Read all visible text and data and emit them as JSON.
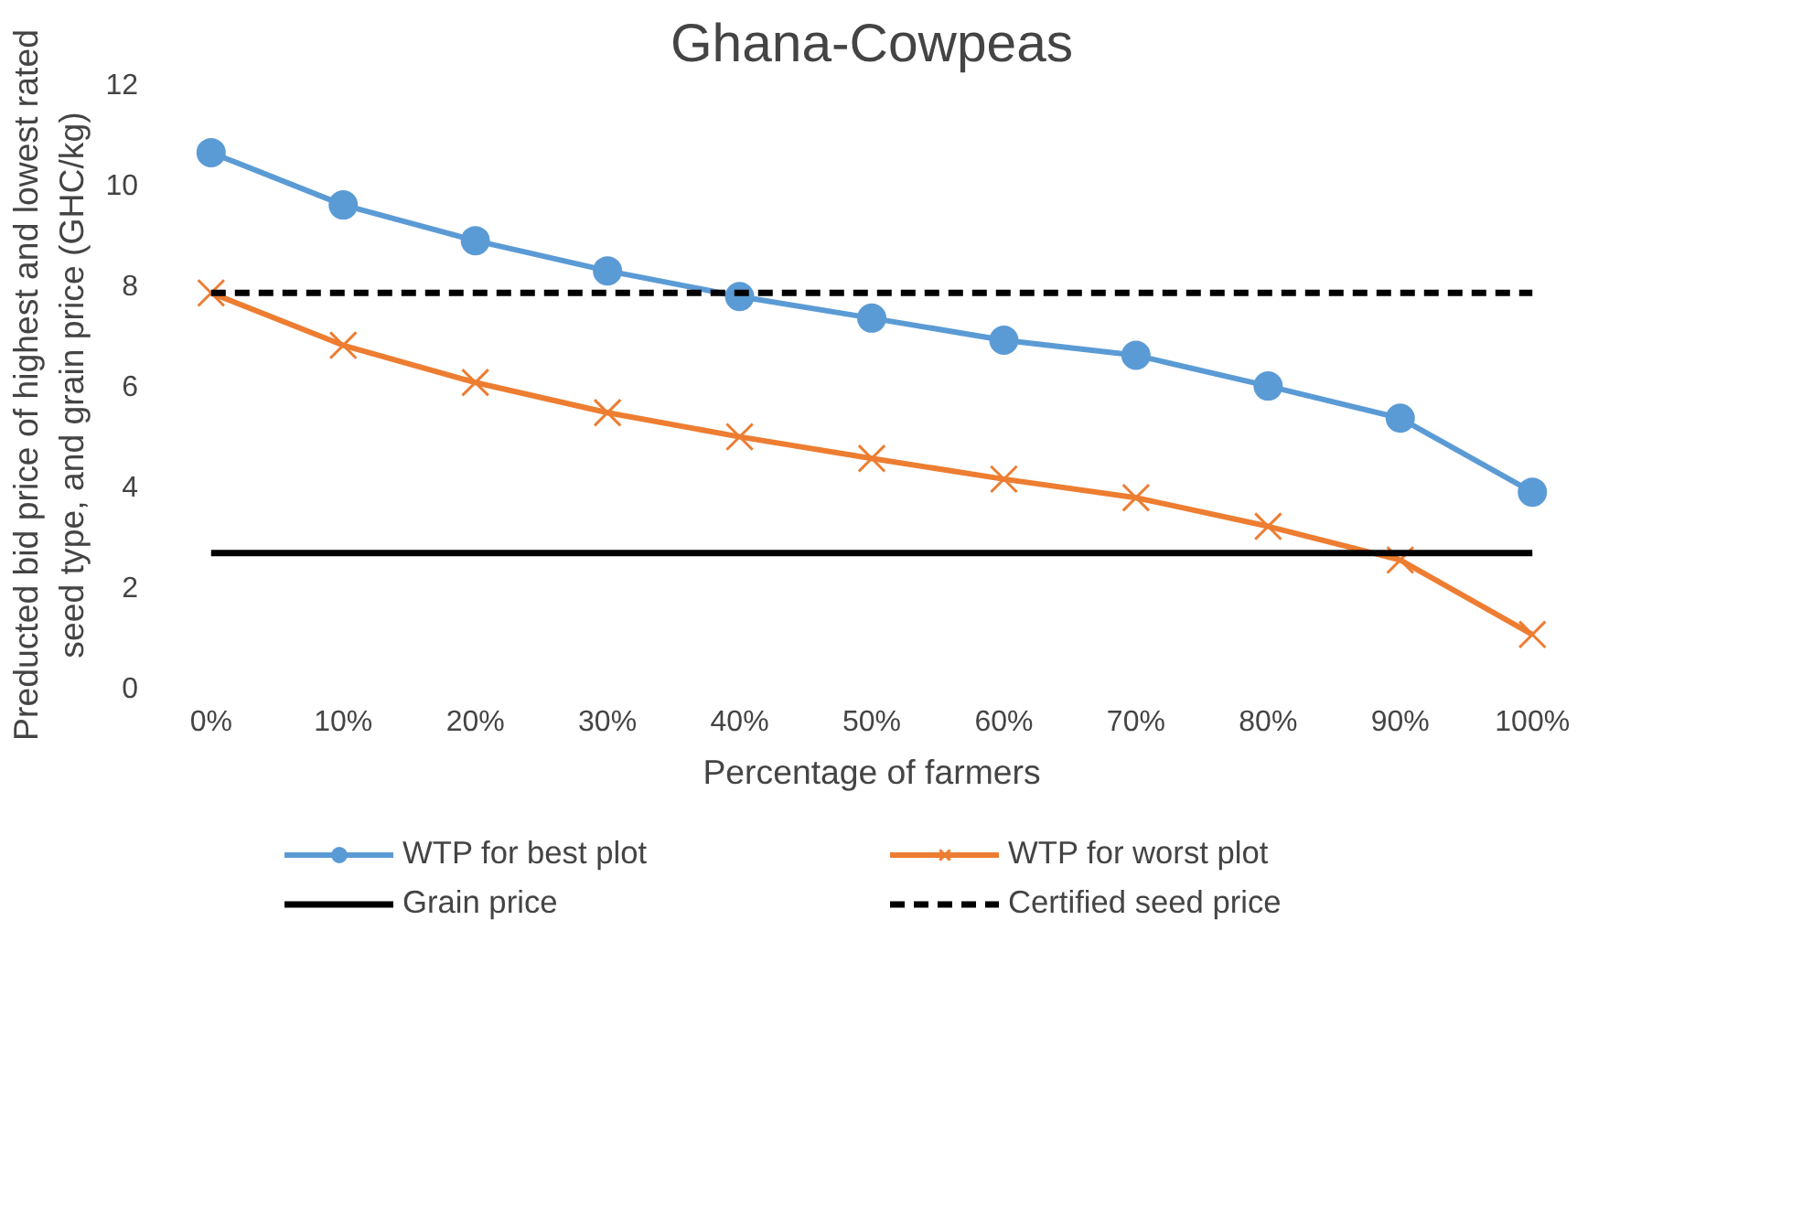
{
  "chart_data": {
    "type": "line",
    "title": "Ghana-Cowpeas",
    "xlabel": "Percentage of farmers",
    "ylabel": "Preducted bid price of highest and lowest rated seed type, and grain price (GHC/kg)",
    "categories": [
      "0%",
      "10%",
      "20%",
      "30%",
      "40%",
      "50%",
      "60%",
      "70%",
      "80%",
      "90%",
      "100%"
    ],
    "ylim": [
      0,
      12
    ],
    "yticks": [
      0,
      2,
      4,
      6,
      8,
      10,
      12
    ],
    "grid": false,
    "legend": "bottom",
    "series": [
      {
        "name": "WTP for best plot",
        "color": "#5b9bd5",
        "marker": "circle",
        "line_style": "solid",
        "values": [
          10.62,
          9.58,
          8.87,
          8.27,
          7.76,
          7.33,
          6.89,
          6.59,
          5.98,
          5.34,
          3.87
        ]
      },
      {
        "name": "WTP for worst plot",
        "color": "#ed7d31",
        "marker": "cross",
        "line_style": "solid",
        "values": [
          7.83,
          6.79,
          6.05,
          5.45,
          4.97,
          4.54,
          4.13,
          3.76,
          3.19,
          2.52,
          1.04
        ]
      },
      {
        "name": "Grain price",
        "color": "#000000",
        "marker": "none",
        "line_style": "solid",
        "values": [
          2.66,
          2.66,
          2.66,
          2.66,
          2.66,
          2.66,
          2.66,
          2.66,
          2.66,
          2.66,
          2.66
        ]
      },
      {
        "name": "Certified seed price",
        "color": "#000000",
        "marker": "none",
        "line_style": "dashed",
        "values": [
          7.83,
          7.83,
          7.83,
          7.83,
          7.83,
          7.83,
          7.83,
          7.83,
          7.83,
          7.83,
          7.83
        ]
      }
    ]
  }
}
